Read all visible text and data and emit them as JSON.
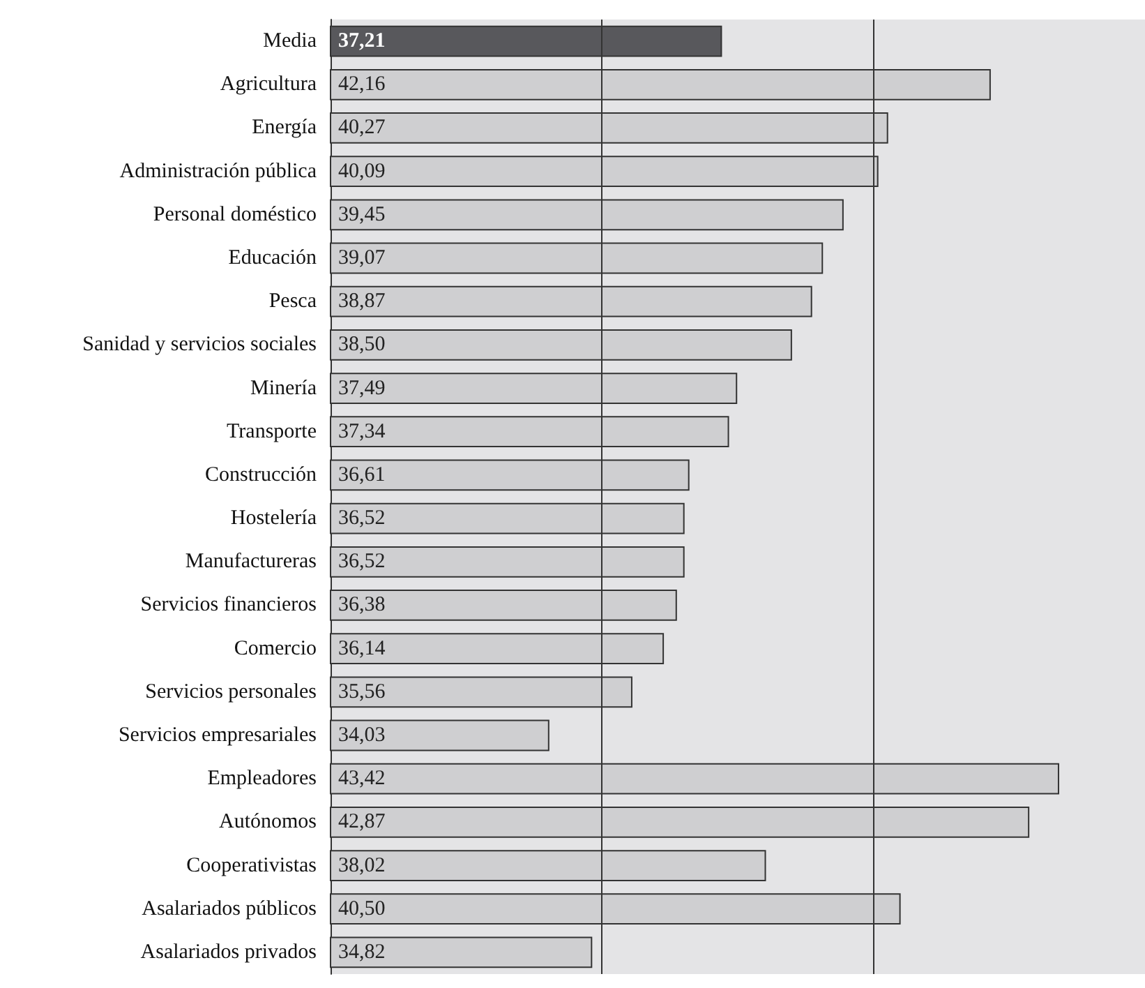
{
  "chart_data": {
    "type": "bar",
    "orientation": "horizontal",
    "categories": [
      "Media",
      "Agricultura",
      "Energía",
      "Administración pública",
      "Personal doméstico",
      "Educación",
      "Pesca",
      "Sanidad y servicios sociales",
      "Minería",
      "Transporte",
      "Construcción",
      "Hostelería",
      "Manufactureras",
      "Servicios financieros",
      "Comercio",
      "Servicios personales",
      "Servicios empresariales",
      "Empleadores",
      "Autónomos",
      "Cooperativistas",
      "Asalariados públicos",
      "Asalariados privados"
    ],
    "values": [
      37.21,
      42.16,
      40.27,
      40.09,
      39.45,
      39.07,
      38.87,
      38.5,
      37.49,
      37.34,
      36.61,
      36.52,
      36.52,
      36.38,
      36.14,
      35.56,
      34.03,
      43.42,
      42.87,
      38.02,
      40.5,
      34.82
    ],
    "value_labels": [
      "37,21",
      "42,16",
      "40,27",
      "40,09",
      "39,45",
      "39,07",
      "38,87",
      "38,50",
      "37,49",
      "37,34",
      "36,61",
      "36,52",
      "36,52",
      "36,38",
      "36,14",
      "35,56",
      "34,03",
      "43,42",
      "42,87",
      "38,02",
      "40,50",
      "34,82"
    ],
    "colors": [
      "#58585c",
      "#cfcfd1",
      "#cfcfd1",
      "#cfcfd1",
      "#cfcfd1",
      "#cfcfd1",
      "#cfcfd1",
      "#cfcfd1",
      "#cfcfd1",
      "#cfcfd1",
      "#cfcfd1",
      "#cfcfd1",
      "#cfcfd1",
      "#cfcfd1",
      "#cfcfd1",
      "#cfcfd1",
      "#cfcfd1",
      "#cfcfd1",
      "#cfcfd1",
      "#cfcfd1",
      "#cfcfd1",
      "#cfcfd1"
    ],
    "xlim": [
      30,
      45
    ],
    "ref_lines": [
      {
        "axis": "x",
        "value": 35,
        "color": "#333333"
      },
      {
        "axis": "x",
        "value": 40,
        "color": "#333333"
      }
    ],
    "tick_labels": "y"
  }
}
